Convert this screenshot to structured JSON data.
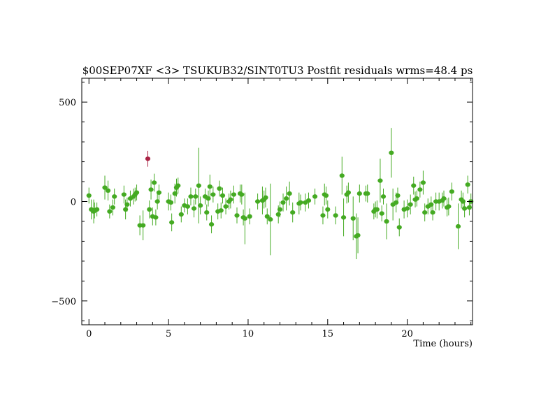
{
  "chart_data": {
    "type": "scatter",
    "title": "$00SEP07XF <3> TSUKUB32/SINT0TU3 Postfit residuals wrms=48.4  ps",
    "xlabel": "Time (hours)",
    "ylabel": "",
    "xlim": [
      -0.45,
      24.1
    ],
    "ylim": [
      -620,
      620
    ],
    "x_ticks": [
      0,
      5,
      10,
      15,
      20
    ],
    "x_tick_labels": [
      "0",
      "5",
      "10",
      "15",
      "20"
    ],
    "y_ticks": [
      -500,
      0,
      500
    ],
    "y_tick_labels": [
      "−500",
      "0",
      "500"
    ],
    "grid": false,
    "colors": {
      "good": "#44aa22",
      "outlier": "#aa2244"
    },
    "series": [
      {
        "flag": "good",
        "points": [
          {
            "x": 0.0,
            "y": 30,
            "err": 40
          },
          {
            "x": 0.15,
            "y": -40,
            "err": 50
          },
          {
            "x": 0.3,
            "y": -50,
            "err": 60
          },
          {
            "x": 0.35,
            "y": -45,
            "err": 40
          },
          {
            "x": 0.5,
            "y": -40,
            "err": 35
          },
          {
            "x": 1.0,
            "y": 70,
            "err": 60
          },
          {
            "x": 1.2,
            "y": 55,
            "err": 50
          },
          {
            "x": 1.3,
            "y": -50,
            "err": 35
          },
          {
            "x": 1.5,
            "y": -30,
            "err": 40
          },
          {
            "x": 1.6,
            "y": 25,
            "err": 40
          },
          {
            "x": 2.2,
            "y": 35,
            "err": 45
          },
          {
            "x": 2.3,
            "y": -40,
            "err": 50
          },
          {
            "x": 2.4,
            "y": -15,
            "err": 35
          },
          {
            "x": 2.6,
            "y": 15,
            "err": 40
          },
          {
            "x": 2.8,
            "y": 25,
            "err": 40
          },
          {
            "x": 2.9,
            "y": 35,
            "err": 35
          },
          {
            "x": 3.0,
            "y": 45,
            "err": 40
          },
          {
            "x": 3.2,
            "y": -120,
            "err": 50
          },
          {
            "x": 3.4,
            "y": -120,
            "err": 75
          },
          {
            "x": 3.8,
            "y": -40,
            "err": 45
          },
          {
            "x": 3.9,
            "y": 60,
            "err": 50
          },
          {
            "x": 4.0,
            "y": -75,
            "err": 45
          },
          {
            "x": 4.1,
            "y": 95,
            "err": 45
          },
          {
            "x": 4.2,
            "y": -80,
            "err": 40
          },
          {
            "x": 4.3,
            "y": 0,
            "err": 40
          },
          {
            "x": 4.4,
            "y": 45,
            "err": 40
          },
          {
            "x": 5.0,
            "y": 0,
            "err": 45
          },
          {
            "x": 5.15,
            "y": -5,
            "err": 40
          },
          {
            "x": 5.2,
            "y": -105,
            "err": 45
          },
          {
            "x": 5.4,
            "y": 40,
            "err": 50
          },
          {
            "x": 5.5,
            "y": 70,
            "err": 45
          },
          {
            "x": 5.6,
            "y": 80,
            "err": 40
          },
          {
            "x": 5.8,
            "y": -65,
            "err": 40
          },
          {
            "x": 6.0,
            "y": -20,
            "err": 35
          },
          {
            "x": 6.2,
            "y": -25,
            "err": 40
          },
          {
            "x": 6.4,
            "y": 25,
            "err": 45
          },
          {
            "x": 6.6,
            "y": -35,
            "err": 45
          },
          {
            "x": 6.7,
            "y": 25,
            "err": 40
          },
          {
            "x": 6.9,
            "y": 80,
            "err": 190
          },
          {
            "x": 7.0,
            "y": -20,
            "err": 45
          },
          {
            "x": 7.3,
            "y": 25,
            "err": 40
          },
          {
            "x": 7.4,
            "y": -55,
            "err": 40
          },
          {
            "x": 7.5,
            "y": 15,
            "err": 40
          },
          {
            "x": 7.6,
            "y": 75,
            "err": 60
          },
          {
            "x": 7.7,
            "y": -115,
            "err": 45
          },
          {
            "x": 7.8,
            "y": 35,
            "err": 40
          },
          {
            "x": 8.1,
            "y": -50,
            "err": 40
          },
          {
            "x": 8.2,
            "y": 65,
            "err": 40
          },
          {
            "x": 8.3,
            "y": -45,
            "err": 40
          },
          {
            "x": 8.4,
            "y": 30,
            "err": 40
          },
          {
            "x": 8.6,
            "y": -25,
            "err": 40
          },
          {
            "x": 8.8,
            "y": 0,
            "err": 40
          },
          {
            "x": 8.9,
            "y": 10,
            "err": 45
          },
          {
            "x": 9.1,
            "y": 35,
            "err": 45
          },
          {
            "x": 9.3,
            "y": -70,
            "err": 40
          },
          {
            "x": 9.5,
            "y": 40,
            "err": 45
          },
          {
            "x": 9.6,
            "y": 35,
            "err": 50
          },
          {
            "x": 9.7,
            "y": -80,
            "err": 40
          },
          {
            "x": 9.8,
            "y": -85,
            "err": 130
          },
          {
            "x": 10.1,
            "y": -75,
            "err": 40
          },
          {
            "x": 10.6,
            "y": 0,
            "err": 40
          },
          {
            "x": 10.9,
            "y": 5,
            "err": 70
          },
          {
            "x": 11.0,
            "y": 10,
            "err": 45
          },
          {
            "x": 11.1,
            "y": 20,
            "err": 50
          },
          {
            "x": 11.2,
            "y": -75,
            "err": 40
          },
          {
            "x": 11.4,
            "y": -90,
            "err": 180
          },
          {
            "x": 11.9,
            "y": -65,
            "err": 45
          },
          {
            "x": 12.0,
            "y": -40,
            "err": 40
          },
          {
            "x": 12.2,
            "y": -5,
            "err": 45
          },
          {
            "x": 12.4,
            "y": 15,
            "err": 60
          },
          {
            "x": 12.6,
            "y": 40,
            "err": 60
          },
          {
            "x": 12.8,
            "y": -55,
            "err": 50
          },
          {
            "x": 13.2,
            "y": -10,
            "err": 55
          },
          {
            "x": 13.3,
            "y": -5,
            "err": 40
          },
          {
            "x": 13.6,
            "y": -5,
            "err": 45
          },
          {
            "x": 13.8,
            "y": 5,
            "err": 40
          },
          {
            "x": 14.2,
            "y": 25,
            "err": 40
          },
          {
            "x": 14.7,
            "y": -70,
            "err": 45
          },
          {
            "x": 14.8,
            "y": 35,
            "err": 55
          },
          {
            "x": 14.9,
            "y": 30,
            "err": 45
          },
          {
            "x": 15.0,
            "y": -40,
            "err": 45
          },
          {
            "x": 15.5,
            "y": -70,
            "err": 45
          },
          {
            "x": 15.9,
            "y": 130,
            "err": 95
          },
          {
            "x": 16.0,
            "y": -80,
            "err": 95
          },
          {
            "x": 16.2,
            "y": 35,
            "err": 45
          },
          {
            "x": 16.3,
            "y": 45,
            "err": 50
          },
          {
            "x": 16.6,
            "y": -85,
            "err": 110
          },
          {
            "x": 16.8,
            "y": -175,
            "err": 115
          },
          {
            "x": 16.9,
            "y": -170,
            "err": 90
          },
          {
            "x": 17.0,
            "y": 40,
            "err": 45
          },
          {
            "x": 17.4,
            "y": 40,
            "err": 40
          },
          {
            "x": 17.5,
            "y": 40,
            "err": 45
          },
          {
            "x": 17.9,
            "y": -50,
            "err": 40
          },
          {
            "x": 18.0,
            "y": -40,
            "err": 40
          },
          {
            "x": 18.1,
            "y": -40,
            "err": 45
          },
          {
            "x": 18.3,
            "y": 105,
            "err": 110
          },
          {
            "x": 18.4,
            "y": -60,
            "err": 40
          },
          {
            "x": 18.5,
            "y": 25,
            "err": 40
          },
          {
            "x": 18.7,
            "y": -100,
            "err": 90
          },
          {
            "x": 19.0,
            "y": 245,
            "err": 125
          },
          {
            "x": 19.1,
            "y": -15,
            "err": 80
          },
          {
            "x": 19.3,
            "y": -5,
            "err": 50
          },
          {
            "x": 19.4,
            "y": 30,
            "err": 40
          },
          {
            "x": 19.5,
            "y": -130,
            "err": 45
          },
          {
            "x": 19.8,
            "y": -40,
            "err": 45
          },
          {
            "x": 20.0,
            "y": -35,
            "err": 45
          },
          {
            "x": 20.2,
            "y": -15,
            "err": 50
          },
          {
            "x": 20.4,
            "y": 80,
            "err": 45
          },
          {
            "x": 20.5,
            "y": 10,
            "err": 40
          },
          {
            "x": 20.6,
            "y": 15,
            "err": 40
          },
          {
            "x": 20.8,
            "y": 60,
            "err": 40
          },
          {
            "x": 21.0,
            "y": 95,
            "err": 60
          },
          {
            "x": 21.1,
            "y": -55,
            "err": 45
          },
          {
            "x": 21.3,
            "y": -25,
            "err": 40
          },
          {
            "x": 21.5,
            "y": -15,
            "err": 40
          },
          {
            "x": 21.6,
            "y": -55,
            "err": 40
          },
          {
            "x": 21.8,
            "y": 0,
            "err": 45
          },
          {
            "x": 22.0,
            "y": 0,
            "err": 45
          },
          {
            "x": 22.2,
            "y": 5,
            "err": 40
          },
          {
            "x": 22.3,
            "y": 15,
            "err": 40
          },
          {
            "x": 22.5,
            "y": -30,
            "err": 45
          },
          {
            "x": 22.6,
            "y": -25,
            "err": 45
          },
          {
            "x": 22.8,
            "y": 50,
            "err": 45
          },
          {
            "x": 23.2,
            "y": -125,
            "err": 115
          },
          {
            "x": 23.4,
            "y": 10,
            "err": 45
          },
          {
            "x": 23.5,
            "y": 0,
            "err": 45
          },
          {
            "x": 23.6,
            "y": -35,
            "err": 45
          },
          {
            "x": 23.8,
            "y": 85,
            "err": 45
          },
          {
            "x": 23.9,
            "y": -30,
            "err": 40
          },
          {
            "x": 24.0,
            "y": 0,
            "err": 40
          }
        ]
      },
      {
        "flag": "outlier",
        "points": [
          {
            "x": 3.7,
            "y": 215,
            "err": 40
          }
        ]
      }
    ]
  }
}
